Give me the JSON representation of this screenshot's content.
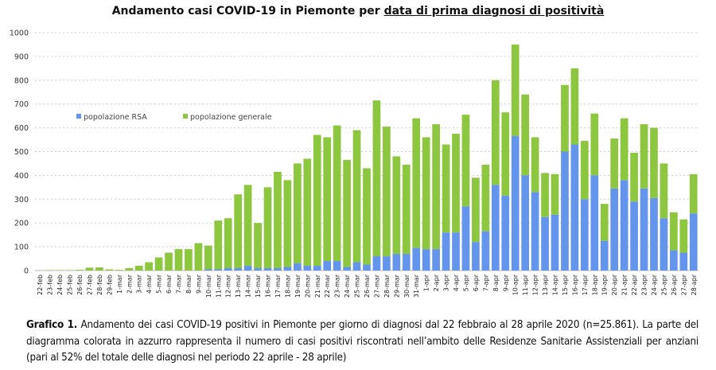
{
  "title": {
    "prefix": "Andamento casi COVID-19 in Piemonte per ",
    "underlined": "data di prima diagnosi di positività"
  },
  "caption": {
    "label": "Grafico 1.",
    "text": " Andamento dei casi COVID-19 positivi in Piemonte per giorno di diagnosi dal 22 febbraio al 28 aprile 2020 (n=25.861). La parte del diagramma colorata in azzurro rappresenta il numero di casi positivi riscontrati nell’ambito delle Residenze Sanitarie Assistenziali per anziani (pari al 52% del totale delle diagnosi nel periodo 22 aprile - 28 aprile)"
  },
  "colors": {
    "rsa": "#6495ED",
    "generale": "#8DC63F",
    "grid": "#cfcfcf"
  },
  "chart_data": {
    "type": "bar",
    "stacked": true,
    "title": "Andamento casi COVID-19 in Piemonte per data di prima diagnosi di positività",
    "xlabel": "",
    "ylabel": "",
    "ylim": [
      0,
      1000
    ],
    "yticks": [
      0,
      100,
      200,
      300,
      400,
      500,
      600,
      700,
      800,
      900,
      1000
    ],
    "grid": true,
    "legend_position": "top-left",
    "categories": [
      "22-feb",
      "23-feb",
      "24-feb",
      "25-feb",
      "26-feb",
      "27-feb",
      "28-feb",
      "29-feb",
      "1-mar",
      "2-mar",
      "3-mar",
      "4-mar",
      "5-mar",
      "6-mar",
      "7-mar",
      "8-mar",
      "9-mar",
      "10-mar",
      "11-mar",
      "12-mar",
      "13-mar",
      "14-mar",
      "15-mar",
      "16-mar",
      "17-mar",
      "18-mar",
      "19-mar",
      "20-mar",
      "21-mar",
      "22-mar",
      "23-mar",
      "24-mar",
      "25-mar",
      "26-mar",
      "27-mar",
      "28-mar",
      "29-mar",
      "30-mar",
      "31-mar",
      "1-apr",
      "2-apr",
      "3-apr",
      "4-apr",
      "5-apr",
      "6-apr",
      "7-apr",
      "8-apr",
      "9-apr",
      "10-apr",
      "11-apr",
      "12-apr",
      "13-apr",
      "14-apr",
      "15-apr",
      "16-apr",
      "17-apr",
      "18-apr",
      "19-apr",
      "20-apr",
      "21-apr",
      "22-apr",
      "23-apr",
      "24-apr",
      "25-apr",
      "26-apr",
      "27-apr",
      "28-apr"
    ],
    "series": [
      {
        "name": "popolazione RSA",
        "values": [
          0,
          0,
          0,
          0,
          0,
          0,
          0,
          0,
          0,
          0,
          0,
          0,
          0,
          0,
          0,
          0,
          0,
          5,
          5,
          10,
          10,
          20,
          10,
          10,
          10,
          15,
          30,
          20,
          20,
          40,
          40,
          15,
          35,
          25,
          60,
          60,
          70,
          70,
          95,
          90,
          90,
          160,
          160,
          270,
          120,
          165,
          360,
          315,
          565,
          400,
          330,
          225,
          235,
          500,
          530,
          300,
          400,
          125,
          345,
          380,
          290,
          345,
          305,
          220,
          85,
          75,
          240
        ]
      },
      {
        "name": "popolazione generale",
        "values": [
          1,
          2,
          2,
          2,
          3,
          12,
          13,
          5,
          3,
          10,
          20,
          35,
          55,
          75,
          90,
          90,
          115,
          100,
          205,
          210,
          310,
          340,
          190,
          340,
          405,
          365,
          420,
          450,
          550,
          520,
          570,
          450,
          555,
          405,
          655,
          545,
          410,
          375,
          545,
          470,
          525,
          370,
          415,
          385,
          270,
          280,
          440,
          350,
          385,
          340,
          230,
          185,
          170,
          280,
          320,
          245,
          260,
          155,
          210,
          260,
          205,
          270,
          295,
          230,
          160,
          140,
          165
        ]
      }
    ]
  }
}
